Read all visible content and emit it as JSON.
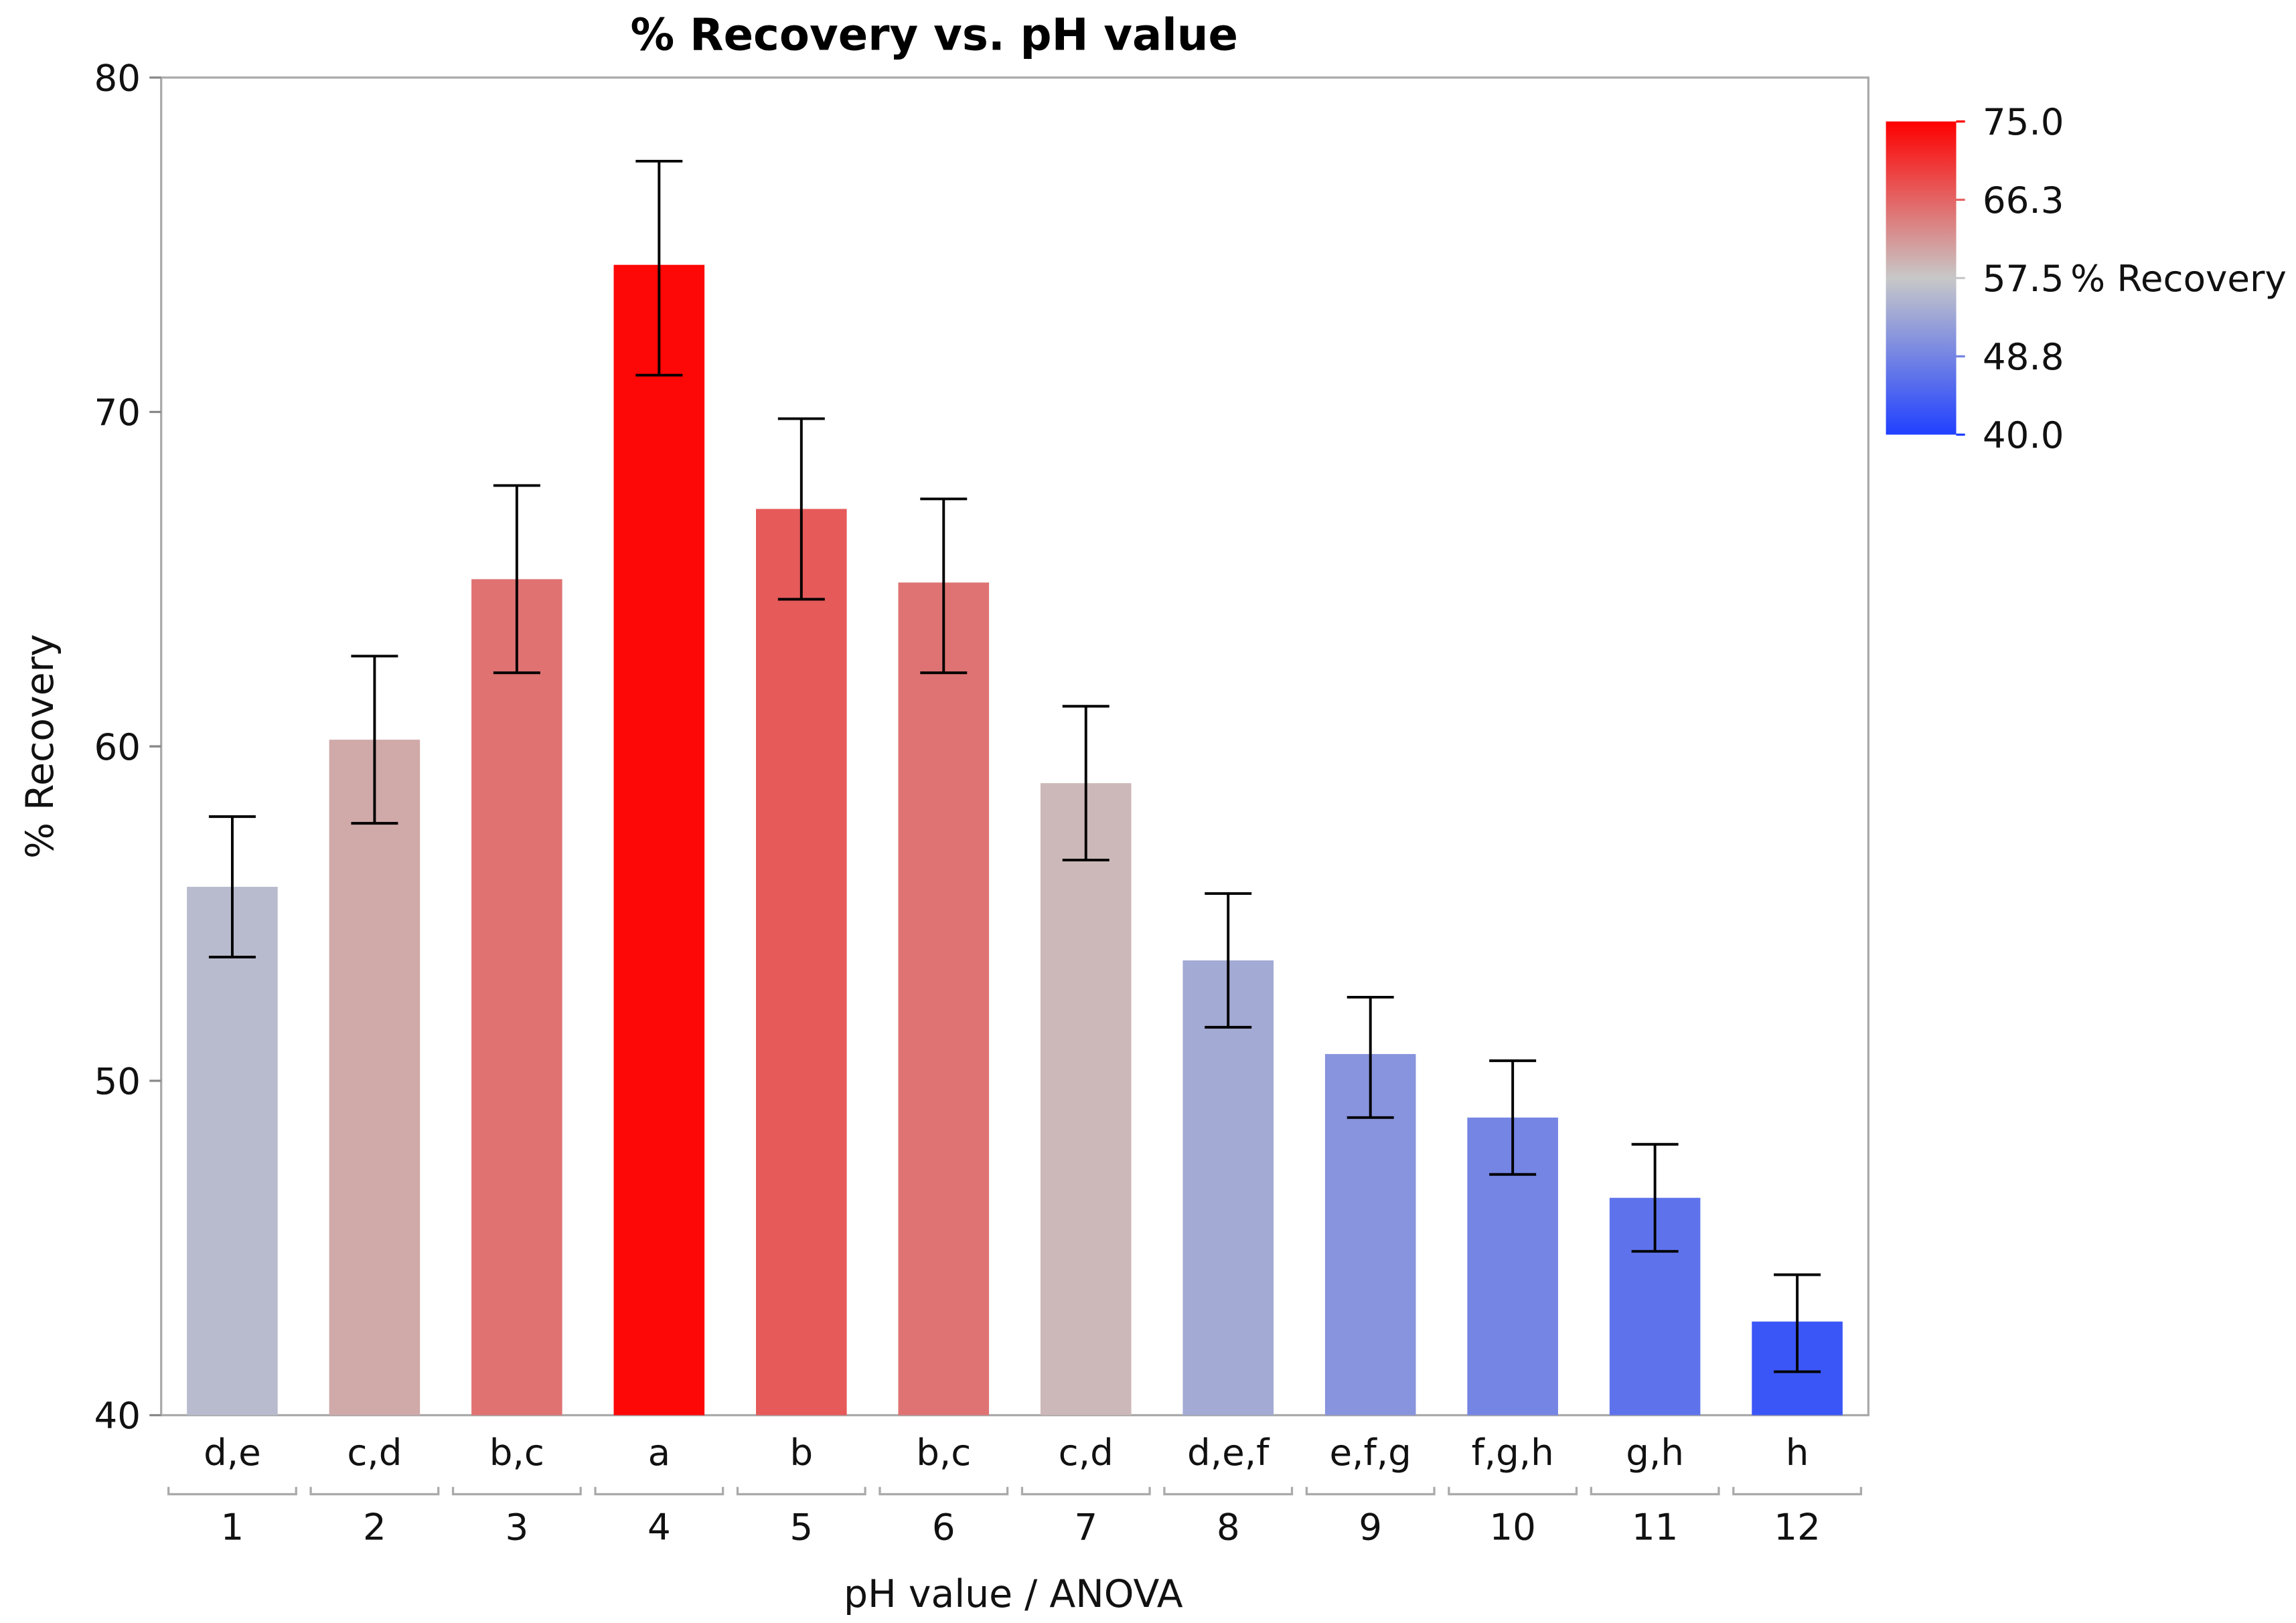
{
  "chart_data": {
    "type": "bar",
    "title": "% Recovery vs. pH value",
    "xlabel": "pH value / ANOVA",
    "ylabel": "% Recovery",
    "ylim": [
      40,
      80
    ],
    "yticks": [
      "40",
      "50",
      "60",
      "70",
      "80"
    ],
    "grid": false,
    "categories": [
      "1",
      "2",
      "3",
      "4",
      "5",
      "6",
      "7",
      "8",
      "9",
      "10",
      "11",
      "12"
    ],
    "anova_groups": [
      "d,e",
      "c,d",
      "b,c",
      "a",
      "b",
      "b,c",
      "c,d",
      "d,e,f",
      "e,f,g",
      "f,g,h",
      "g,h",
      "h"
    ],
    "values": [
      55.8,
      60.2,
      65.0,
      74.4,
      67.1,
      64.9,
      58.9,
      53.6,
      50.8,
      48.9,
      46.5,
      42.8
    ],
    "error_upper": [
      57.9,
      62.7,
      67.8,
      77.5,
      69.8,
      67.4,
      61.2,
      55.6,
      52.5,
      50.6,
      48.1,
      44.2
    ],
    "error_lower": [
      53.7,
      57.7,
      62.2,
      71.1,
      64.4,
      62.2,
      56.6,
      51.6,
      48.9,
      47.2,
      44.9,
      41.3
    ],
    "colorscale": {
      "label": "% Recovery",
      "ticks": [
        "75.0",
        "66.3",
        "57.5",
        "48.8",
        "40.0"
      ],
      "range": [
        40,
        75
      ],
      "colors": {
        "low": "#2040ff",
        "mid": "#c8c8c8",
        "high": "#ff0000"
      }
    },
    "legend_position": "top-right"
  }
}
